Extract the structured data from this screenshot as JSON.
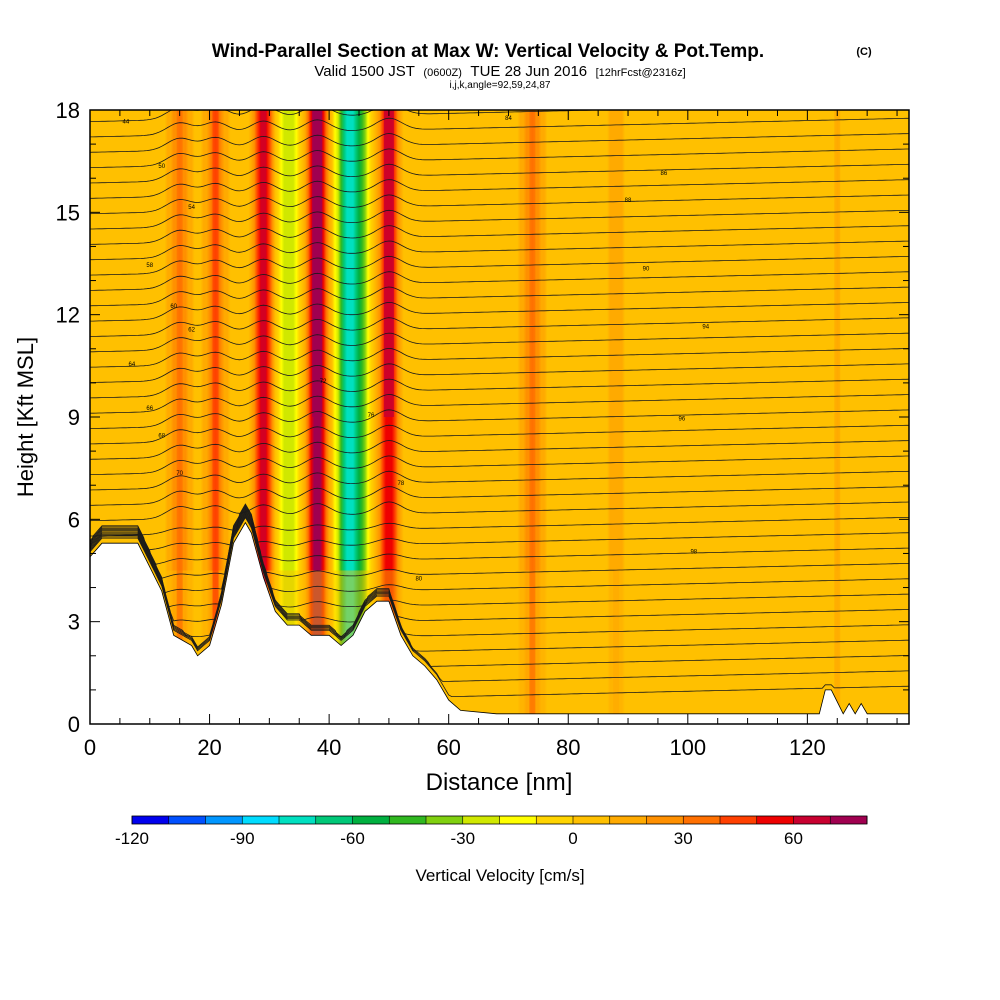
{
  "chart_data": {
    "type": "heatmap",
    "title": "Wind-Parallel Section at Max W: Vertical Velocity & Pot.Temp.",
    "title_mark": "(C)",
    "subtitle": {
      "valid": "Valid 1500 JST",
      "utc": "(0600Z)",
      "date": "TUE 28 Jun 2016",
      "forecast": "[12hrFcst@2316z]"
    },
    "index_line": "i,j,k,angle=92,59,24,87",
    "xlabel": "Distance [nm]",
    "ylabel": "Height [Kft MSL]",
    "xlim": [
      0,
      137
    ],
    "ylim": [
      0,
      18
    ],
    "x_ticks": [
      "0",
      "20",
      "40",
      "60",
      "80",
      "100",
      "120"
    ],
    "y_ticks": [
      "0",
      "3",
      "6",
      "9",
      "12",
      "15",
      "18"
    ],
    "grid": false,
    "colorbar": {
      "label": "Vertical Velocity [cm/s]",
      "min": -120,
      "max": 80,
      "step": 10,
      "tick_labels": [
        "-120",
        "-90",
        "-60",
        "-30",
        "0",
        "30",
        "60"
      ],
      "colors": [
        "#0000ee",
        "#0050ff",
        "#0096ff",
        "#00dcff",
        "#00e0c0",
        "#00c878",
        "#00b040",
        "#30b820",
        "#80d010",
        "#d0e800",
        "#ffff00",
        "#ffd400",
        "#ffc000",
        "#ffaa00",
        "#ff9000",
        "#ff7000",
        "#ff4000",
        "#ee0000",
        "#c80030",
        "#a00050"
      ]
    },
    "updrafts": [
      {
        "x": 15,
        "value": 30
      },
      {
        "x": 21,
        "value": 40
      },
      {
        "x": 29,
        "value": 60
      },
      {
        "x": 38,
        "value": 80
      },
      {
        "x": 50,
        "value": 60
      },
      {
        "x": 74,
        "value": 30
      },
      {
        "x": 88,
        "value": 15
      },
      {
        "x": 125,
        "value": 10
      }
    ],
    "downdrafts": [
      {
        "x": 33,
        "value": -30
      },
      {
        "x": 43,
        "value": -60
      },
      {
        "x": 45,
        "value": -40
      }
    ],
    "terrain": [
      [
        0,
        4.9
      ],
      [
        2,
        5.3
      ],
      [
        8,
        5.3
      ],
      [
        10,
        4.6
      ],
      [
        12,
        3.9
      ],
      [
        14,
        2.6
      ],
      [
        17,
        2.3
      ],
      [
        18,
        2.0
      ],
      [
        20,
        2.3
      ],
      [
        22,
        3.5
      ],
      [
        24,
        5.3
      ],
      [
        26,
        5.9
      ],
      [
        27,
        5.6
      ],
      [
        29,
        4.3
      ],
      [
        31,
        3.3
      ],
      [
        33,
        2.9
      ],
      [
        35,
        2.9
      ],
      [
        37,
        2.6
      ],
      [
        40,
        2.6
      ],
      [
        42,
        2.3
      ],
      [
        44,
        2.6
      ],
      [
        46,
        3.3
      ],
      [
        48,
        3.6
      ],
      [
        50,
        3.6
      ],
      [
        52,
        2.6
      ],
      [
        54,
        2.0
      ],
      [
        56,
        1.7
      ],
      [
        58,
        1.3
      ],
      [
        60,
        0.7
      ],
      [
        62,
        0.4
      ],
      [
        68,
        0.3
      ],
      [
        72,
        0.3
      ],
      [
        80,
        0.3
      ],
      [
        100,
        0.3
      ],
      [
        118,
        0.3
      ],
      [
        122,
        0.3
      ],
      [
        123,
        1.0
      ],
      [
        124,
        1.0
      ],
      [
        126,
        0.3
      ],
      [
        127,
        0.6
      ],
      [
        128,
        0.3
      ],
      [
        129,
        0.6
      ],
      [
        130,
        0.3
      ],
      [
        137,
        0.3
      ]
    ],
    "theta_contour_labels": [
      "44",
      "50",
      "54",
      "58",
      "60",
      "62",
      "64",
      "66",
      "68",
      "70",
      "72",
      "76",
      "78",
      "80",
      "84",
      "86",
      "88",
      "90",
      "94",
      "96",
      "98"
    ]
  }
}
